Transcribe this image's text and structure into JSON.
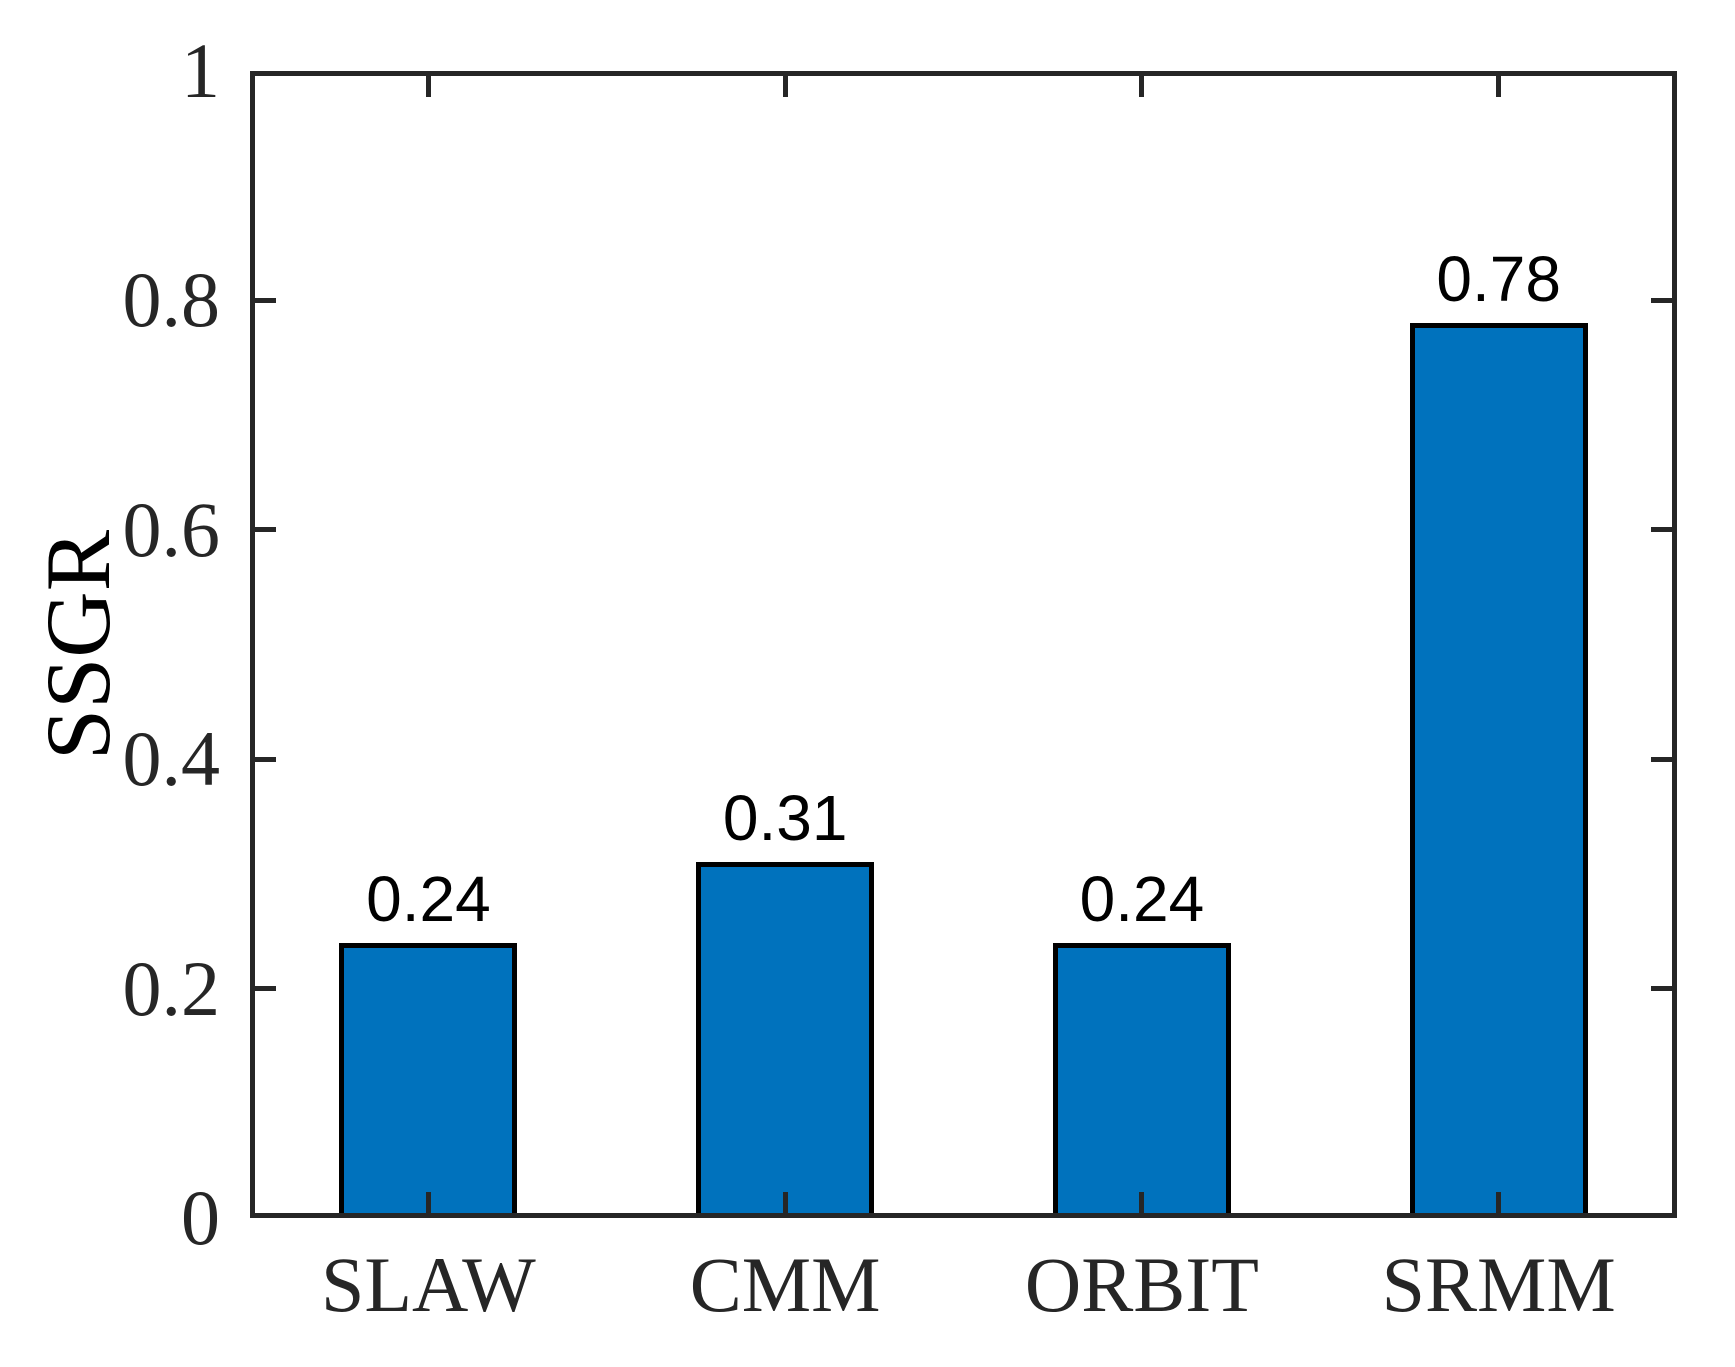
{
  "chart_data": {
    "type": "bar",
    "categories": [
      "SLAW",
      "CMM",
      "ORBIT",
      "SRMM"
    ],
    "values": [
      0.24,
      0.31,
      0.24,
      0.78
    ],
    "bar_labels": [
      "0.24",
      "0.31",
      "0.24",
      "0.78"
    ],
    "title": "",
    "xlabel": "",
    "ylabel": "SSGR",
    "ylim": [
      0,
      1
    ],
    "yticks": [
      0,
      0.2,
      0.4,
      0.6,
      0.8,
      1
    ],
    "ytick_labels": [
      "0",
      "0.2",
      "0.4",
      "0.6",
      "0.8",
      "1"
    ],
    "legend": null,
    "grid": false,
    "layout_hints": {
      "tick_direction": "in",
      "box": "on",
      "legend_position": "none"
    },
    "colors": {
      "bar_fill": "#0072BD",
      "bar_edge": "#000000",
      "axis": "#262626",
      "tick_label": "#262626",
      "value_label": "#000000",
      "background": "#ffffff"
    }
  }
}
